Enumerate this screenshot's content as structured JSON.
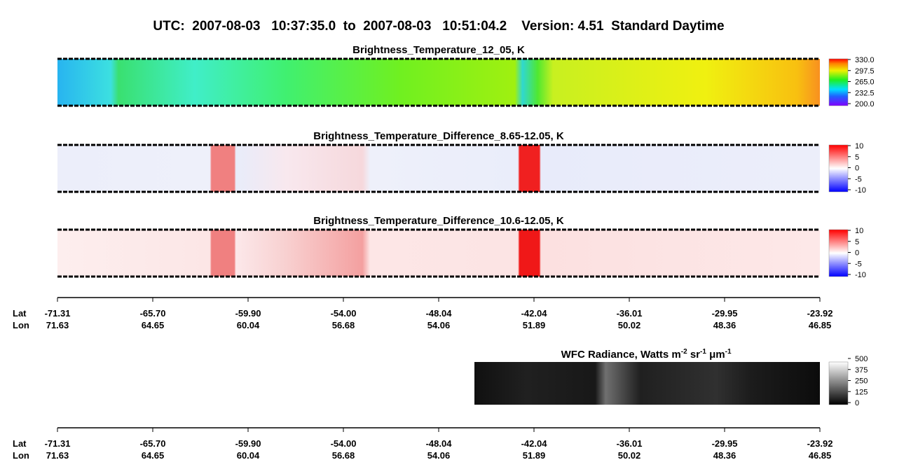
{
  "header": {
    "title": "UTC:  2007-08-03   10:37:35.0  to  2007-08-03   10:51:04.2    Version: 4.51  Standard Daytime"
  },
  "panels": [
    {
      "title": "Brightness_Temperature_12_05, K",
      "colorbar": [
        "330.0",
        "297.5",
        "265.0",
        "232.5",
        "200.0"
      ]
    },
    {
      "title": "Brightness_Temperature_Difference_8.65-12.05, K",
      "colorbar": [
        "10",
        "5",
        "0",
        "-5",
        "-10"
      ]
    },
    {
      "title": "Brightness_Temperature_Difference_10.6-12.05, K",
      "colorbar": [
        "10",
        "5",
        "0",
        "-5",
        "-10"
      ]
    }
  ],
  "wfc": {
    "title_parts": [
      "WFC Radiance, Watts m",
      "-2",
      " sr",
      "-1",
      " μm",
      "-1"
    ],
    "colorbar": [
      "500",
      "375",
      "250",
      "125",
      "0"
    ]
  },
  "axis": {
    "lat_label": "Lat",
    "lon_label": "Lon",
    "lat": [
      "-71.31",
      "-65.70",
      "-59.90",
      "-54.00",
      "-48.04",
      "-42.04",
      "-36.01",
      "-29.95",
      "-23.92"
    ],
    "lon": [
      "71.63",
      "64.65",
      "60.04",
      "56.68",
      "54.06",
      "51.89",
      "50.02",
      "48.36",
      "46.85"
    ]
  }
}
